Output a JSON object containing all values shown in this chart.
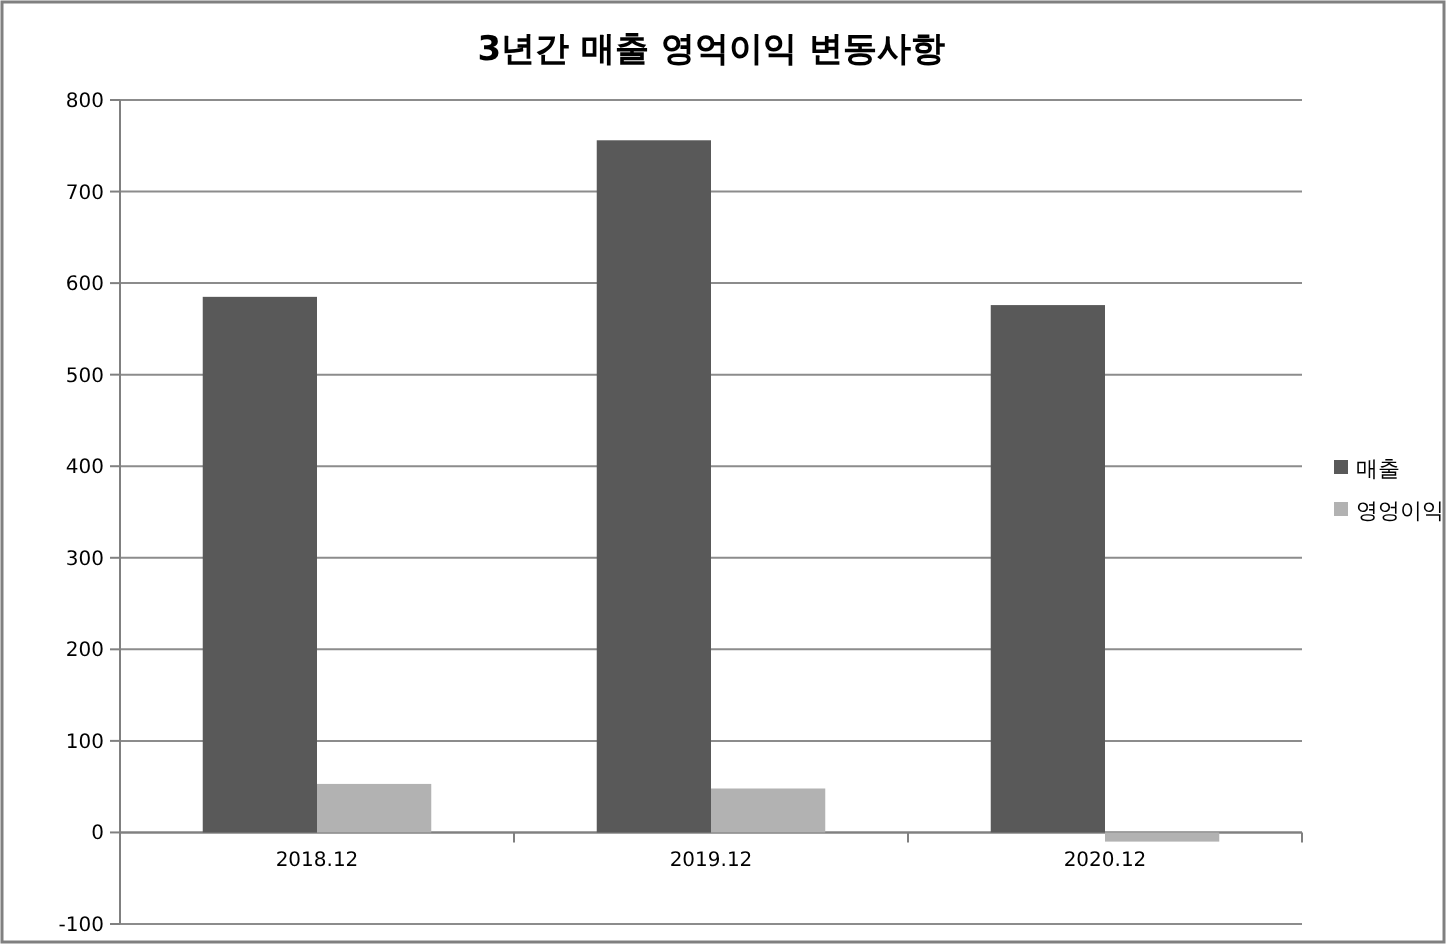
{
  "chart_data": {
    "type": "bar",
    "title": "3년간 매출 영억이익 변동사항",
    "categories": [
      "2018.12",
      "2019.12",
      "2020.12"
    ],
    "series": [
      {
        "name": "매출",
        "color": "#595959",
        "values": [
          585,
          756,
          576
        ]
      },
      {
        "name": "영엉이익",
        "color": "#b2b2b2",
        "values": [
          53,
          48,
          -10
        ]
      }
    ],
    "ylim": [
      -100,
      800
    ],
    "yticks": [
      -100,
      0,
      100,
      200,
      300,
      400,
      500,
      600,
      700,
      800
    ],
    "grid": "y",
    "legend": "right"
  }
}
